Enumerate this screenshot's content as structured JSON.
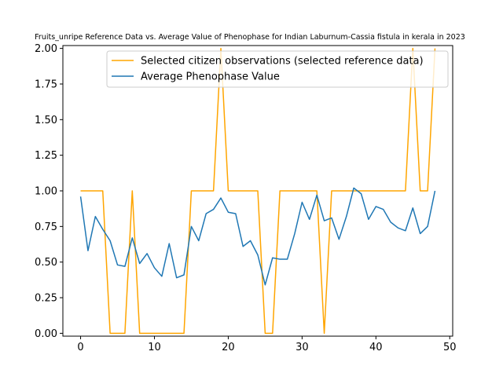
{
  "chart_data": {
    "type": "line",
    "title": "Fruits_unripe Reference Data vs. Average Value of Phenophase for Indian Laburnum-Cassia fistula in kerala in 2023",
    "xlabel": "",
    "ylabel": "",
    "xlim": [
      -2.4,
      50.4
    ],
    "ylim": [
      -0.02,
      2.02
    ],
    "xticks": [
      0,
      10,
      20,
      30,
      40,
      50
    ],
    "yticks": [
      0.0,
      0.25,
      0.5,
      0.75,
      1.0,
      1.25,
      1.5,
      1.75,
      2.0
    ],
    "ytick_labels": [
      "0.00",
      "0.25",
      "0.50",
      "0.75",
      "1.00",
      "1.25",
      "1.50",
      "1.75",
      "2.00"
    ],
    "grid": false,
    "legend_position": "top-right",
    "x": [
      0,
      1,
      2,
      3,
      4,
      5,
      6,
      7,
      8,
      9,
      10,
      11,
      12,
      13,
      14,
      15,
      16,
      17,
      18,
      19,
      20,
      21,
      22,
      23,
      24,
      25,
      26,
      27,
      28,
      29,
      30,
      31,
      32,
      33,
      34,
      35,
      36,
      37,
      38,
      39,
      40,
      41,
      42,
      43,
      44,
      45,
      46,
      47,
      48
    ],
    "series": [
      {
        "name": "Selected citizen observations (selected reference data)",
        "color": "#FFA500",
        "values": [
          1,
          1,
          1,
          1,
          0,
          0,
          0,
          1,
          0,
          0,
          0,
          0,
          0,
          0,
          0,
          1,
          1,
          1,
          1,
          2,
          1,
          1,
          1,
          1,
          1,
          0,
          0,
          1,
          1,
          1,
          1,
          1,
          1,
          0,
          1,
          1,
          1,
          1,
          1,
          1,
          1,
          1,
          1,
          1,
          1,
          2,
          1,
          1,
          2
        ]
      },
      {
        "name": "Average Phenophase Value",
        "color": "#1f77b4",
        "values": [
          0.96,
          0.58,
          0.82,
          0.73,
          0.65,
          0.48,
          0.47,
          0.67,
          0.49,
          0.56,
          0.46,
          0.4,
          0.63,
          0.39,
          0.41,
          0.75,
          0.65,
          0.84,
          0.87,
          0.95,
          0.85,
          0.84,
          0.61,
          0.65,
          0.55,
          0.34,
          0.53,
          0.52,
          0.52,
          0.7,
          0.92,
          0.8,
          0.97,
          0.79,
          0.81,
          0.66,
          0.82,
          1.02,
          0.98,
          0.8,
          0.89,
          0.87,
          0.78,
          0.74,
          0.72,
          0.88,
          0.7,
          0.75,
          1.0
        ]
      }
    ]
  }
}
